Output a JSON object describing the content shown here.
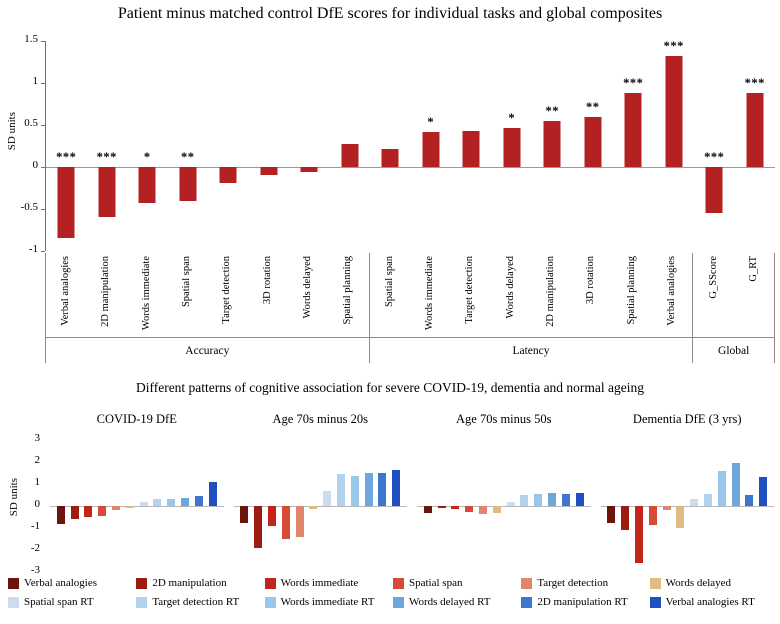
{
  "figure": {
    "background": "#ffffff"
  },
  "chart_data": [
    {
      "type": "bar",
      "title": "Patient minus matched control DfE scores for individual tasks and global composites",
      "ylabel": "SD units",
      "ylim": [
        -1,
        1.5
      ],
      "yticks": [
        1.5,
        1,
        0.5,
        0,
        -0.5,
        -1
      ],
      "bar_color": "#b42122",
      "grid": false,
      "legend_position": "none",
      "groups": [
        {
          "label": "Accuracy",
          "bars": [
            {
              "label": "Verbal analogies",
              "value": -0.85,
              "sig": "***"
            },
            {
              "label": "2D manipulation",
              "value": -0.6,
              "sig": "***"
            },
            {
              "label": "Words immediate",
              "value": -0.43,
              "sig": "*"
            },
            {
              "label": "Spatial span",
              "value": -0.4,
              "sig": "**"
            },
            {
              "label": "Target detection",
              "value": -0.19,
              "sig": ""
            },
            {
              "label": "3D rotation",
              "value": -0.09,
              "sig": ""
            },
            {
              "label": "Words delayed",
              "value": -0.06,
              "sig": ""
            },
            {
              "label": "Spatial planning",
              "value": 0.27,
              "sig": ""
            }
          ]
        },
        {
          "label": "Latency",
          "bars": [
            {
              "label": "Spatial span",
              "value": 0.22,
              "sig": ""
            },
            {
              "label": "Words immediate",
              "value": 0.42,
              "sig": "*"
            },
            {
              "label": "Target detection",
              "value": 0.43,
              "sig": ""
            },
            {
              "label": "Words delayed",
              "value": 0.46,
              "sig": "*"
            },
            {
              "label": "2D manipulation",
              "value": 0.55,
              "sig": "**"
            },
            {
              "label": "3D rotation",
              "value": 0.6,
              "sig": "**"
            },
            {
              "label": "Spatial planning",
              "value": 0.88,
              "sig": "***"
            },
            {
              "label": "Verbal analogies",
              "value": 1.32,
              "sig": "***"
            }
          ]
        },
        {
          "label": "Global",
          "bars": [
            {
              "label": "G_SScore",
              "value": -0.55,
              "sig": "***"
            },
            {
              "label": "G_RT",
              "value": 0.88,
              "sig": "***"
            }
          ]
        }
      ]
    },
    {
      "type": "bar",
      "title": "Different patterns of cognitive association for severe COVID-19, dementia and normal ageing",
      "ylabel": "SD units",
      "ylim": [
        -3,
        3
      ],
      "yticks": [
        3,
        2,
        1,
        0,
        -1,
        -2,
        -3
      ],
      "grid": false,
      "legend_position": "bottom",
      "panels": [
        "COVID-19 DfE",
        "Age 70s minus 20s",
        "Age 70s minus 50s",
        "Dementia DfE (3 yrs)"
      ],
      "series": [
        {
          "name": "Verbal analogies",
          "color": "#6b150e",
          "values": [
            -0.8,
            -0.75,
            -0.3,
            -0.75
          ]
        },
        {
          "name": "2D manipulation",
          "color": "#9c1c10",
          "values": [
            -0.6,
            -1.9,
            -0.1,
            -1.1
          ]
        },
        {
          "name": "Words immediate",
          "color": "#c0271a",
          "values": [
            -0.5,
            -0.9,
            -0.15,
            -2.6
          ]
        },
        {
          "name": "Spatial span",
          "color": "#d54b38",
          "values": [
            -0.45,
            -1.5,
            -0.25,
            -0.85
          ]
        },
        {
          "name": "Target detection",
          "color": "#e2866b",
          "values": [
            -0.2,
            -1.4,
            -0.35,
            -0.2
          ]
        },
        {
          "name": "Words delayed",
          "color": "#e0bc84",
          "values": [
            -0.1,
            -0.15,
            -0.3,
            -1.0
          ]
        },
        {
          "name": "Spatial span RT",
          "color": "#ccdcec",
          "values": [
            0.2,
            0.7,
            0.2,
            0.3
          ]
        },
        {
          "name": "Target detection RT",
          "color": "#b3d2ed",
          "values": [
            0.3,
            1.45,
            0.5,
            0.55
          ]
        },
        {
          "name": "Words immediate RT",
          "color": "#9ac6ea",
          "values": [
            0.3,
            1.35,
            0.55,
            1.6
          ]
        },
        {
          "name": "Words delayed RT",
          "color": "#6fa7dd",
          "values": [
            0.35,
            1.5,
            0.6,
            1.95
          ]
        },
        {
          "name": "2D manipulation RT",
          "color": "#3c77cc",
          "values": [
            0.45,
            1.5,
            0.55,
            0.5
          ]
        },
        {
          "name": "Verbal analogies RT",
          "color": "#1f4fc0",
          "values": [
            1.1,
            1.65,
            0.6,
            1.3
          ]
        }
      ]
    }
  ]
}
